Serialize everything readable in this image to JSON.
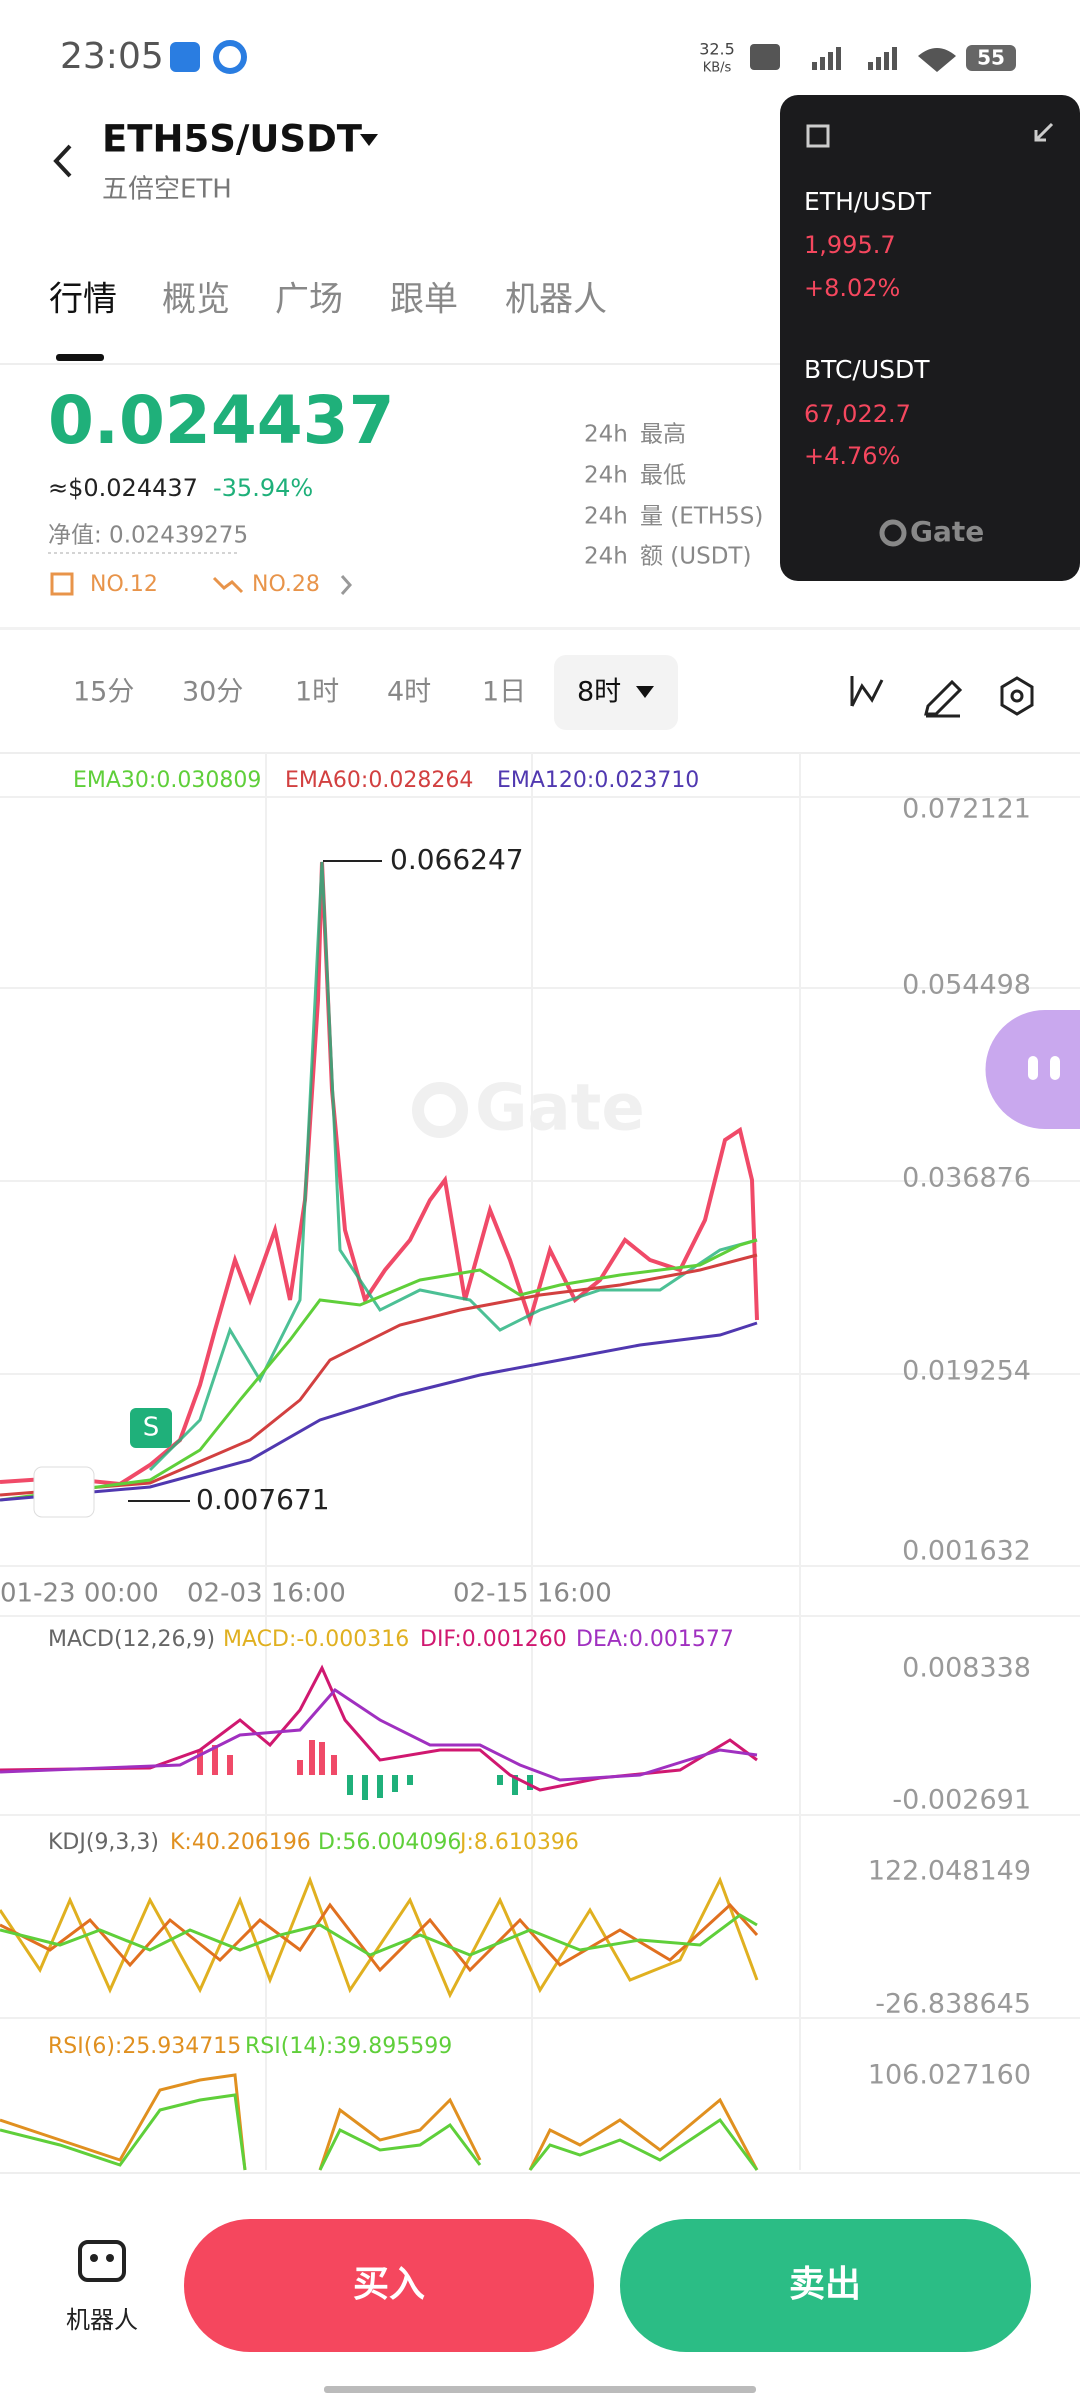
{
  "status": {
    "time": "23:05",
    "speed": "32.5",
    "speed_unit": "KB/s",
    "battery": "55"
  },
  "header": {
    "pair": "ETH5S/USDT",
    "subtitle": "五倍空ETH"
  },
  "tabs": [
    "行情",
    "概览",
    "广场",
    "跟单",
    "机器人"
  ],
  "price": {
    "last": "0.024437",
    "usd": "≈$0.024437",
    "change": "-35.94%",
    "net_value": "净值: 0.02439275",
    "rank_1": "NO.12",
    "rank_2": "NO.28"
  },
  "stats": [
    {
      "period": "24h",
      "label": "最高"
    },
    {
      "period": "24h",
      "label": "最低"
    },
    {
      "period": "24h",
      "label": "量 (ETH5S)"
    },
    {
      "period": "24h",
      "label": "额 (USDT)"
    }
  ],
  "popup": {
    "items": [
      {
        "pair": "ETH/USDT",
        "price": "1,995.7",
        "change": "+8.02%"
      },
      {
        "pair": "BTC/USDT",
        "price": "67,022.7",
        "change": "+4.76%"
      }
    ],
    "brand": "Gate"
  },
  "intervals": [
    "15分",
    "30分",
    "1时",
    "4时",
    "1日",
    "8时"
  ],
  "kline": {
    "legend": [
      "EMA30:0.030809",
      "EMA60:0.028264",
      "EMA120:0.023710"
    ],
    "axis": [
      "0.072121",
      "0.054498",
      "0.036876",
      "0.019254",
      "0.001632"
    ],
    "high": "0.066247",
    "low": "0.007671",
    "signal": "S",
    "dates": [
      "01-23 00:00",
      "02-03 16:00",
      "02-15 16:00"
    ],
    "watermark": "Gate"
  },
  "macd": {
    "legend": [
      "MACD(12,26,9)",
      "MACD:-0.000316",
      "DIF:0.001260",
      "DEA:0.001577"
    ],
    "axis": [
      "0.008338",
      "-0.002691"
    ]
  },
  "kdj": {
    "legend": [
      "KDJ(9,3,3)",
      "K:40.206196",
      "D:56.004096",
      "J:8.610396"
    ],
    "axis": [
      "122.048149",
      "-26.838645"
    ]
  },
  "rsi": {
    "legend": [
      "RSI(6):25.934715",
      "RSI(14):39.895599"
    ],
    "axis": [
      "106.027160"
    ]
  },
  "bottom": {
    "robot": "机器人",
    "buy": "买入",
    "sell": "卖出"
  }
}
